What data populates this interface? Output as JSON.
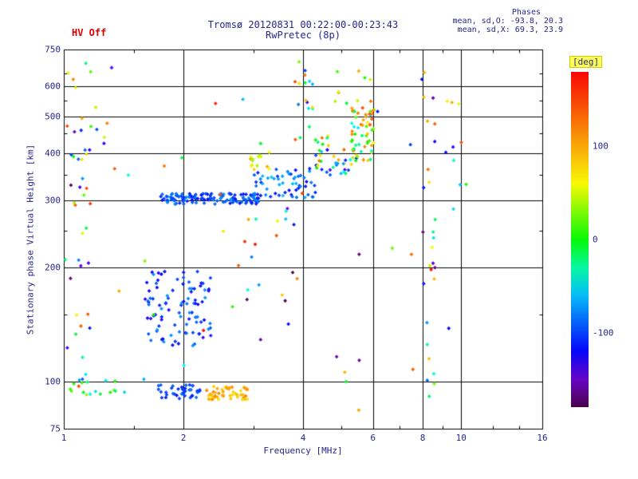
{
  "header": {
    "hv_label": "HV Off",
    "title_line1": "Tromsø 20120831 00:22:00-00:23:43",
    "title_line2": "RwPretec (8p)",
    "phases_title": "Phases",
    "phases_o": "mean, sd,O: -93.8, 20.3",
    "phases_x": "mean, sd,X: 69.3, 23.9"
  },
  "colors": {
    "text": "#26268c",
    "hv": "#dd0000",
    "grid": "#000000",
    "background": "#ffffff"
  },
  "chart_data": {
    "type": "scatter",
    "title": "Tromsø 20120831 00:22:00-00:23:43",
    "subtitle": "RwPretec (8p)",
    "xlabel": "Frequency [MHz]",
    "ylabel": "Stationary phase Virtual Height [km]",
    "x_scale": "log",
    "y_scale": "log",
    "xlim": [
      1,
      16
    ],
    "ylim": [
      75,
      750
    ],
    "xticks": [
      1,
      2,
      4,
      6,
      8,
      10,
      16
    ],
    "xticks_minor": [
      1.5,
      3,
      5,
      7,
      9,
      12,
      14
    ],
    "yticks": [
      75,
      100,
      200,
      300,
      400,
      500,
      600,
      750
    ],
    "yticks_minor": [
      150,
      250,
      350,
      450,
      550,
      650
    ],
    "grid_x": [
      2,
      4,
      6,
      8,
      10
    ],
    "grid_y": [
      100,
      200,
      300,
      400,
      500,
      600
    ],
    "grid": true,
    "legend_position": "none",
    "marker": "diamond",
    "marker_size": 2.4,
    "colorbar": {
      "label": "[deg]",
      "range": [
        -180,
        180
      ],
      "ticks": [
        100,
        0,
        -100
      ]
    },
    "phase_color_anchors": [
      [
        -180,
        300
      ],
      [
        -120,
        240
      ],
      [
        -60,
        195
      ],
      [
        0,
        120
      ],
      [
        60,
        60
      ],
      [
        120,
        30
      ],
      [
        180,
        0
      ]
    ],
    "clusters": [
      {
        "name": "f-trace-main",
        "n": 130,
        "f": [
          1.75,
          3.1
        ],
        "h": [
          293,
          313
        ],
        "p": [
          -120,
          -70
        ]
      },
      {
        "name": "f-trace-rise",
        "n": 55,
        "f": [
          3.0,
          4.3
        ],
        "h": [
          305,
          365
        ],
        "p": [
          -120,
          -55
        ]
      },
      {
        "name": "f-trace-yellow-patch",
        "n": 14,
        "f": [
          2.95,
          3.35
        ],
        "h": [
          360,
          405
        ],
        "p": [
          30,
          120
        ]
      },
      {
        "name": "f-trace-upper",
        "n": 45,
        "f": [
          4.3,
          5.6
        ],
        "h": [
          350,
          445
        ],
        "p": [
          -140,
          140
        ]
      },
      {
        "name": "cusp-5-6mhz",
        "n": 55,
        "f": [
          5.3,
          6.05
        ],
        "h": [
          380,
          530
        ],
        "p": [
          -60,
          150
        ]
      },
      {
        "name": "e-region-cloud",
        "n": 95,
        "f": [
          1.6,
          2.35
        ],
        "h": [
          123,
          196
        ],
        "p": [
          -130,
          -70
        ]
      },
      {
        "name": "es-band-blue",
        "n": 40,
        "f": [
          1.7,
          2.2
        ],
        "h": [
          90,
          98
        ],
        "p": [
          -120,
          -85
        ]
      },
      {
        "name": "es-band-yellow",
        "n": 50,
        "f": [
          2.25,
          2.9
        ],
        "h": [
          89,
          97
        ],
        "p": [
          70,
          120
        ]
      },
      {
        "name": "es-band-left",
        "n": 14,
        "f": [
          1.0,
          1.5
        ],
        "h": [
          92,
          102
        ],
        "p": [
          -60,
          30
        ]
      },
      {
        "name": "left-edge-column",
        "n": 40,
        "f": [
          1.0,
          1.17
        ],
        "h": [
          78,
          700
        ],
        "p": [
          -180,
          180
        ]
      },
      {
        "name": "left-mid-scatter",
        "n": 10,
        "f": [
          1.03,
          1.4
        ],
        "h": [
          370,
          530
        ],
        "p": [
          -150,
          150
        ]
      },
      {
        "name": "mid-sparse",
        "n": 18,
        "f": [
          2.4,
          4.0
        ],
        "h": [
          150,
          290
        ],
        "p": [
          -180,
          180
        ]
      },
      {
        "name": "column-4mhz-high",
        "n": 18,
        "f": [
          3.8,
          4.25
        ],
        "h": [
          420,
          700
        ],
        "p": [
          -150,
          150
        ]
      },
      {
        "name": "high-5-6mhz",
        "n": 10,
        "f": [
          4.8,
          6.0
        ],
        "h": [
          540,
          660
        ],
        "p": [
          -40,
          140
        ]
      },
      {
        "name": "column-8mhz",
        "n": 26,
        "f": [
          7.8,
          8.6
        ],
        "h": [
          88,
          660
        ],
        "p": [
          -180,
          180
        ]
      },
      {
        "name": "column-9-10mhz",
        "n": 10,
        "f": [
          9.0,
          10.3
        ],
        "h": [
          280,
          630
        ],
        "p": [
          -180,
          180
        ]
      },
      {
        "name": "sprinkle",
        "n": 35,
        "f": [
          1.1,
          9.5
        ],
        "h": [
          80,
          720
        ],
        "p": [
          -180,
          180
        ]
      }
    ]
  }
}
